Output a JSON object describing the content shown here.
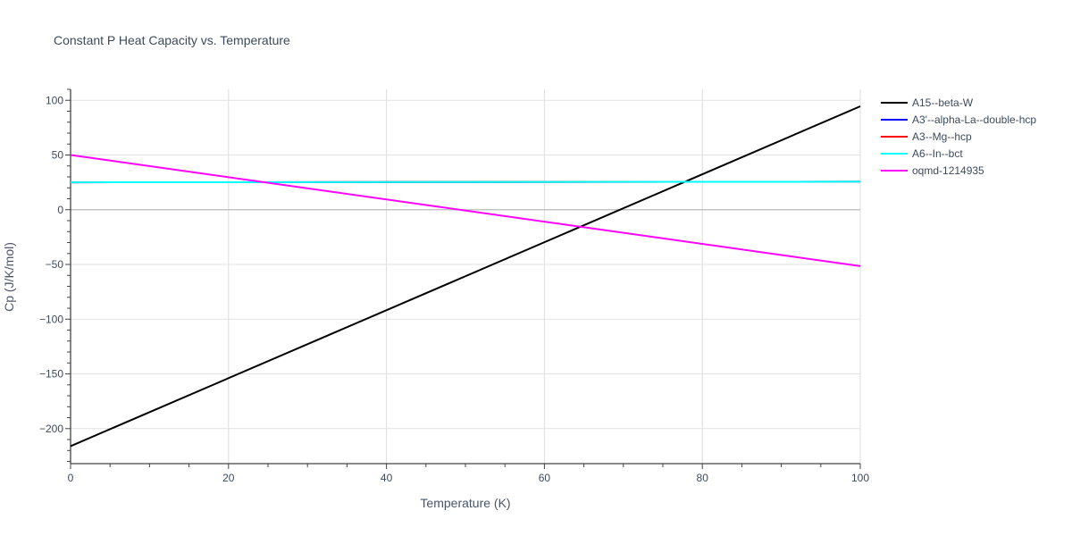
{
  "chart_data": {
    "type": "line",
    "title": "Constant P Heat Capacity vs. Temperature",
    "xlabel": "Temperature (K)",
    "ylabel": "Cp (J/K/mol)",
    "xlim": [
      0,
      100
    ],
    "ylim": [
      -232,
      110
    ],
    "x_ticks": [
      0,
      20,
      40,
      60,
      80,
      100
    ],
    "y_ticks": [
      100,
      50,
      0,
      -50,
      -100,
      -150,
      -200
    ],
    "x_tick_labels": [
      "0",
      "20",
      "40",
      "60",
      "80",
      "100"
    ],
    "y_tick_labels": [
      "100",
      "50",
      "0",
      "−50",
      "−100",
      "−150",
      "−200"
    ],
    "grid": true,
    "legend_position": "top-right",
    "series": [
      {
        "name": "A15--beta-W",
        "color": "#000000",
        "x": [
          0,
          100
        ],
        "y": [
          -216,
          94.5
        ]
      },
      {
        "name": "A3'--alpha-La--double-hcp",
        "color": "#0000ff",
        "x": [
          0,
          100
        ],
        "y": [
          25,
          25.6
        ]
      },
      {
        "name": "A3--Mg--hcp",
        "color": "#ff0000",
        "x": [
          0,
          100
        ],
        "y": [
          25,
          25.6
        ]
      },
      {
        "name": "A6--In--bct",
        "color": "#00ffff",
        "x": [
          0,
          100
        ],
        "y": [
          25,
          25.6
        ]
      },
      {
        "name": "oqmd-1214935",
        "color": "#ff00ff",
        "x": [
          0,
          100
        ],
        "y": [
          50,
          -51.5
        ]
      }
    ]
  }
}
